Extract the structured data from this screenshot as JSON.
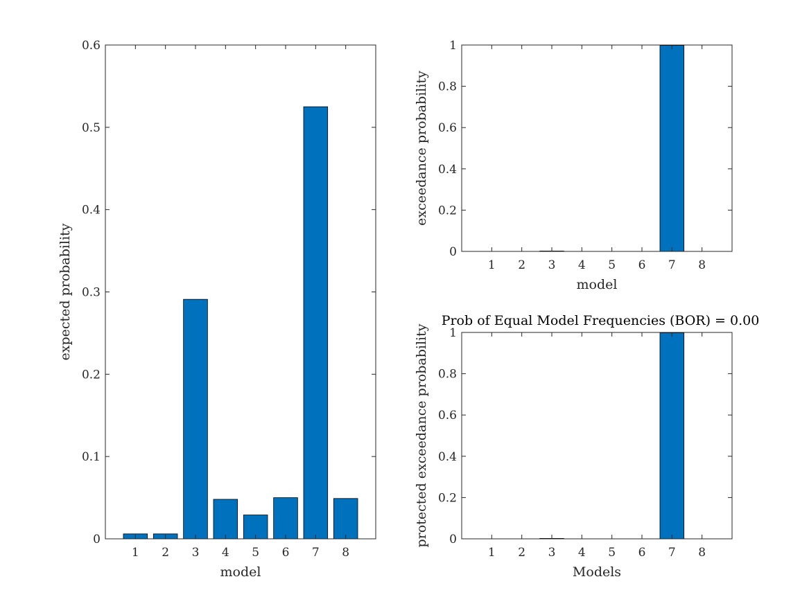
{
  "chart_data": [
    {
      "type": "bar",
      "categories": [
        "1",
        "2",
        "3",
        "4",
        "5",
        "6",
        "7",
        "8"
      ],
      "values": [
        0.006,
        0.006,
        0.291,
        0.048,
        0.029,
        0.05,
        0.525,
        0.049
      ],
      "title": "",
      "xlabel": "model",
      "ylabel": "expected probability",
      "ylim": [
        0,
        0.6
      ],
      "yticks": [
        "0",
        "0.1",
        "0.2",
        "0.3",
        "0.4",
        "0.5",
        "0.6"
      ],
      "grid": false,
      "bar_color": "#0072BD"
    },
    {
      "type": "bar",
      "categories": [
        "1",
        "2",
        "3",
        "4",
        "5",
        "6",
        "7",
        "8"
      ],
      "values": [
        0,
        0,
        0.002,
        0,
        0,
        0,
        0.998,
        0
      ],
      "title": "",
      "xlabel": "model",
      "ylabel": "exceedance probability",
      "ylim": [
        0,
        1
      ],
      "yticks": [
        "0",
        "0.2",
        "0.4",
        "0.6",
        "0.8",
        "1"
      ],
      "grid": false,
      "bar_color": "#0072BD"
    },
    {
      "type": "bar",
      "categories": [
        "1",
        "2",
        "3",
        "4",
        "5",
        "6",
        "7",
        "8"
      ],
      "values": [
        0,
        0,
        0.002,
        0,
        0,
        0,
        0.998,
        0
      ],
      "title": "Prob of Equal Model Frequencies (BOR) = 0.00",
      "xlabel": "Models",
      "ylabel": "protected exceedance probability",
      "ylim": [
        0,
        1
      ],
      "yticks": [
        "0",
        "0.2",
        "0.4",
        "0.6",
        "0.8",
        "1"
      ],
      "grid": false,
      "bar_color": "#0072BD"
    }
  ]
}
